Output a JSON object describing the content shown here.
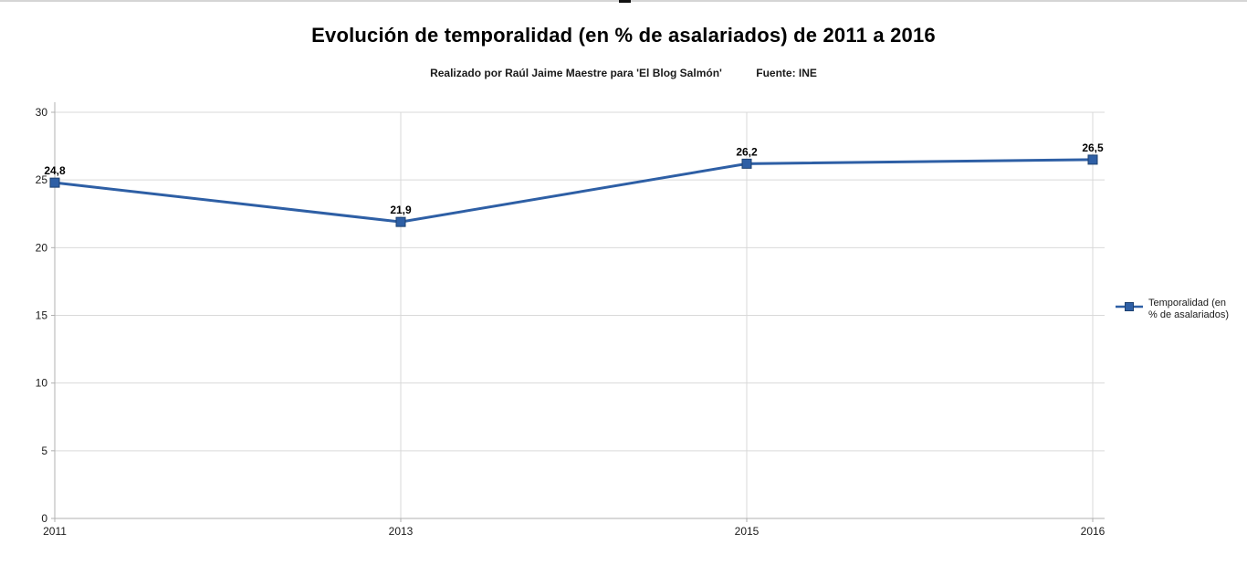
{
  "page": {
    "background": "#ffffff",
    "top_edge": {
      "track_color": "#d5d5d5",
      "marker_color": "#111111"
    }
  },
  "chart_data": {
    "type": "line",
    "title": "Evolución de temporalidad (en % de asalariados) de 2011 a 2016",
    "subtitle_author": "Realizado por Raúl Jaime Maestre para 'El Blog Salmón'",
    "subtitle_source": "Fuente: INE",
    "categories": [
      "2011",
      "2013",
      "2015",
      "2016"
    ],
    "series": [
      {
        "name": "Temporalidad (en % de asalariados)",
        "values": [
          24.8,
          21.9,
          26.2,
          26.5
        ],
        "value_labels": [
          "24,8",
          "21,9",
          "26,2",
          "26,5"
        ],
        "color": "#2e5fa5",
        "marker_border_color": "#1d4170",
        "marker": "square"
      }
    ],
    "ylim": [
      0,
      30
    ],
    "yticks": [
      0,
      5,
      10,
      15,
      20,
      25,
      30
    ],
    "grid": {
      "horizontal": true,
      "vertical": true,
      "color": "#d9d9d9"
    },
    "axis_color": "#b0b0b0",
    "legend": {
      "position": "right",
      "label": "Temporalidad (en % de asalariados)"
    }
  }
}
